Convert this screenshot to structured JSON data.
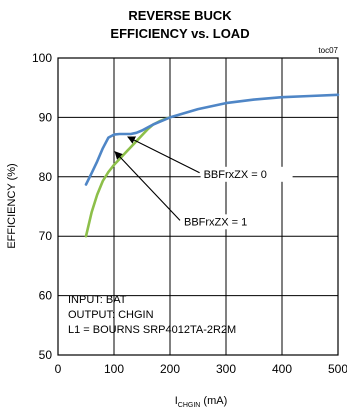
{
  "chart_data": {
    "type": "line",
    "title_line1": "REVERSE BUCK",
    "title_line2": "EFFICIENCY vs. LOAD",
    "figure_code": "toc07",
    "ylabel": "EFFICIENCY (%)",
    "xlabel_main": "I",
    "xlabel_sub": "CHGIN",
    "xlabel_unit": " (mA)",
    "xlim": [
      0,
      500
    ],
    "ylim": [
      50,
      100
    ],
    "x_ticks": [
      "0",
      "100",
      "200",
      "300",
      "400",
      "500"
    ],
    "y_ticks": [
      "100",
      "90",
      "80",
      "70",
      "60",
      "50"
    ],
    "grid": true,
    "series": [
      {
        "color": "#8dbf4a",
        "points": [
          [
            50,
            70
          ],
          [
            60,
            74
          ],
          [
            70,
            77
          ],
          [
            80,
            79.3
          ],
          [
            90,
            80.8
          ],
          [
            100,
            82
          ],
          [
            110,
            83
          ],
          [
            120,
            84
          ],
          [
            130,
            85
          ],
          [
            140,
            86
          ],
          [
            150,
            87
          ],
          [
            160,
            88
          ],
          [
            170,
            88.8
          ],
          [
            180,
            89.3
          ],
          [
            190,
            89.7
          ],
          [
            200,
            90
          ]
        ]
      },
      {
        "color": "#4f86c6",
        "points": [
          [
            50,
            78.7
          ],
          [
            60,
            80.6
          ],
          [
            70,
            82.6
          ],
          [
            80,
            84.8
          ],
          [
            90,
            86.6
          ],
          [
            100,
            87.1
          ],
          [
            110,
            87.2
          ],
          [
            120,
            87.2
          ],
          [
            130,
            87.2
          ],
          [
            140,
            87.4
          ],
          [
            150,
            87.8
          ],
          [
            170,
            88.8
          ],
          [
            200,
            90
          ],
          [
            250,
            91.4
          ],
          [
            300,
            92.4
          ],
          [
            350,
            93
          ],
          [
            400,
            93.4
          ],
          [
            450,
            93.6
          ],
          [
            500,
            93.8
          ]
        ]
      }
    ],
    "annotations": [
      {
        "text": "BBFrxZX = 0",
        "arrow_to": [
          125,
          86.7
        ],
        "text_at": [
          260,
          80
        ]
      },
      {
        "text": "BBFrxZX = 1",
        "arrow_to": [
          102,
          84.2
        ],
        "text_at": [
          225,
          72
        ]
      }
    ],
    "notes": [
      "INPUT: BAT",
      "OUTPUT: CHGIN",
      "L1 =  BOURNS SRP4012TA-2R2M"
    ]
  }
}
